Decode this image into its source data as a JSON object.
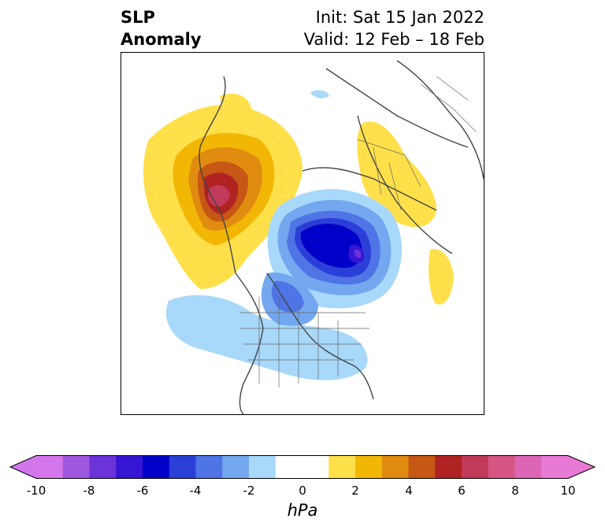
{
  "title": {
    "left_line1": "SLP",
    "left_line2": "Anomaly",
    "right_line1": "Init: Sat 15 Jan 2022",
    "right_line2": "Valid: 12 Feb – 18 Feb"
  },
  "colorbar": {
    "unit": "hPa",
    "ticks": [
      "-10",
      "-8",
      "-6",
      "-4",
      "-2",
      "0",
      "2",
      "4",
      "6",
      "8",
      "10"
    ],
    "levels": [
      -10,
      -9,
      -8,
      -7,
      -6,
      -5,
      -4,
      -3,
      -2,
      -1,
      1,
      2,
      3,
      4,
      5,
      6,
      7,
      8,
      9,
      10
    ],
    "colors": [
      "#d476eb",
      "#a057e0",
      "#6a34d8",
      "#3615d4",
      "#0000c8",
      "#2b3fd8",
      "#4e74e6",
      "#73a8f0",
      "#a8d8fa",
      "#ffffff",
      "#ffe04a",
      "#f2b705",
      "#e08c10",
      "#c75714",
      "#b02323",
      "#c23a5a",
      "#d55585",
      "#dc66b5",
      "#e879d6"
    ],
    "under_color": "#d476eb",
    "over_color": "#e879d6"
  },
  "map": {
    "projection": "north-polar-stereographic",
    "features": [
      "positive-anomaly-north-pacific",
      "negative-anomaly-arctic-canada",
      "positive-anomaly-scandinavia-russia",
      "negative-anomaly-eastern-us"
    ]
  }
}
